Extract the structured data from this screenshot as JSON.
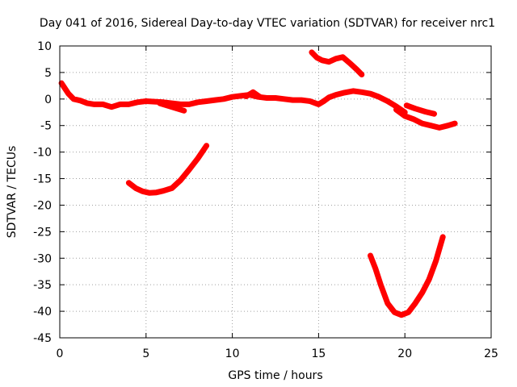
{
  "chart_data": {
    "type": "line",
    "title": "Day 041 of 2016, Sidereal Day-to-day VTEC variation (SDTVAR) for receiver nrc1",
    "xlabel": "GPS time / hours",
    "ylabel": "SDTVAR / TECUs",
    "xlim": [
      0,
      25
    ],
    "ylim": [
      -45,
      10
    ],
    "xticks": [
      0,
      5,
      10,
      15,
      20,
      25
    ],
    "yticks": [
      10,
      5,
      0,
      -5,
      -10,
      -15,
      -20,
      -25,
      -30,
      -35,
      -40,
      -45
    ],
    "grid": true,
    "line_color": "#ff0000",
    "series": [
      {
        "name": "segment-1",
        "x": [
          0.1,
          0.3,
          0.5,
          0.8,
          1.2,
          1.6,
          2.0,
          2.5,
          3.0,
          3.5,
          4.0,
          4.5,
          5.0,
          5.5,
          6.0,
          6.5,
          7.0,
          7.5,
          8.0,
          8.5,
          9.0,
          9.5,
          10.0,
          10.5,
          11.0,
          11.5,
          12.0,
          12.5,
          13.0,
          13.5,
          14.0,
          14.5,
          15.0,
          15.3,
          15.6,
          16.0,
          16.5,
          17.0,
          17.5,
          18.0,
          18.5,
          19.0,
          19.5,
          20.0
        ],
        "y": [
          3.0,
          2.0,
          1.0,
          0.0,
          -0.3,
          -0.8,
          -1.0,
          -1.0,
          -1.5,
          -1.0,
          -1.0,
          -0.6,
          -0.4,
          -0.5,
          -0.6,
          -0.8,
          -1.0,
          -1.0,
          -0.6,
          -0.4,
          -0.2,
          0.0,
          0.4,
          0.6,
          0.8,
          0.4,
          0.2,
          0.2,
          0.0,
          -0.2,
          -0.2,
          -0.4,
          -1.0,
          -0.4,
          0.3,
          0.8,
          1.2,
          1.5,
          1.3,
          1.0,
          0.4,
          -0.4,
          -1.4,
          -2.5
        ]
      },
      {
        "name": "segment-2",
        "x": [
          5.8,
          6.3,
          6.8,
          7.2
        ],
        "y": [
          -0.8,
          -1.3,
          -1.8,
          -2.2
        ]
      },
      {
        "name": "segment-3",
        "x": [
          10.8,
          11.2,
          11.6
        ],
        "y": [
          0.5,
          1.3,
          0.4
        ]
      },
      {
        "name": "segment-4",
        "x": [
          14.6,
          14.9,
          15.2,
          15.6,
          16.0,
          16.4,
          16.8,
          17.2,
          17.5
        ],
        "y": [
          8.8,
          7.8,
          7.3,
          7.0,
          7.6,
          7.9,
          6.8,
          5.6,
          4.6
        ]
      },
      {
        "name": "segment-5",
        "x": [
          19.5,
          20.0,
          20.5,
          21.0,
          21.5,
          22.0,
          22.5,
          22.9
        ],
        "y": [
          -2.0,
          -3.2,
          -3.8,
          -4.6,
          -5.0,
          -5.4,
          -5.0,
          -4.6
        ]
      },
      {
        "name": "segment-6",
        "x": [
          20.1,
          20.6,
          21.2,
          21.7
        ],
        "y": [
          -1.2,
          -1.8,
          -2.4,
          -2.8
        ]
      },
      {
        "name": "segment-7",
        "x": [
          4.0,
          4.4,
          4.8,
          5.2,
          5.6,
          6.0,
          6.5,
          7.0,
          7.5,
          8.0,
          8.5
        ],
        "y": [
          -15.8,
          -16.8,
          -17.4,
          -17.7,
          -17.6,
          -17.3,
          -16.8,
          -15.3,
          -13.3,
          -11.2,
          -8.8
        ]
      },
      {
        "name": "segment-8",
        "x": [
          18.0,
          18.3,
          18.6,
          19.0,
          19.4,
          19.8,
          20.2,
          20.6,
          21.0,
          21.4,
          21.8,
          22.2
        ],
        "y": [
          -29.5,
          -32.0,
          -35.0,
          -38.5,
          -40.2,
          -40.7,
          -40.2,
          -38.5,
          -36.5,
          -34.0,
          -30.5,
          -26.0
        ]
      }
    ]
  }
}
